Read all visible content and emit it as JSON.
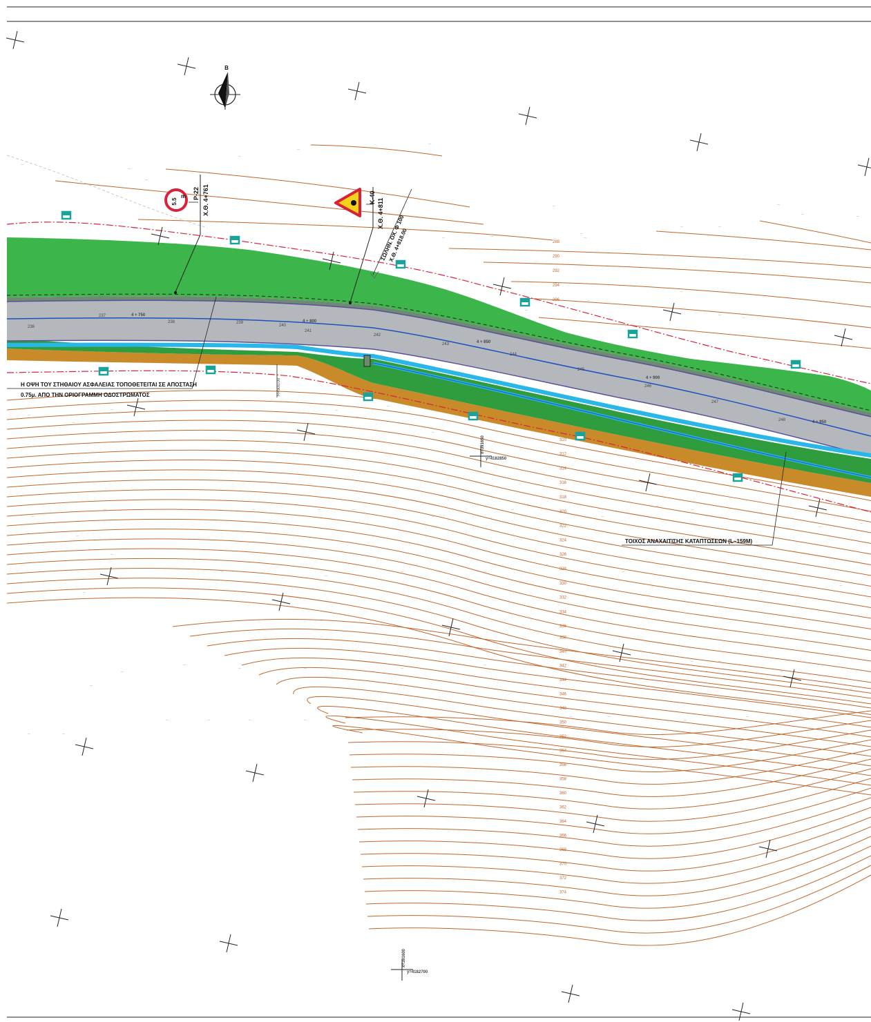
{
  "north_arrow": {
    "letter": "B"
  },
  "signs": [
    {
      "code": "P-22",
      "chainage": "X.Θ. 4+761",
      "value": "5.5",
      "unit": "m"
    },
    {
      "code": "K-40",
      "chainage": "X.Θ. 4+811"
    }
  ],
  "culvert": {
    "line1": "ΣΩΛΗΝ. ΟΧ. Φ 100",
    "line2": "X.Θ. 4+818.00"
  },
  "radius_label": "R=500.00",
  "chainages": [
    "4 + 750",
    "4 + 800",
    "4 + 850",
    "4 + 900",
    "4 + 950"
  ],
  "stations": [
    "236",
    "237",
    "238",
    "239",
    "240",
    "241",
    "242",
    "243",
    "244",
    "245",
    "246",
    "247",
    "248"
  ],
  "note": {
    "line1": "Η ΟΨΗ ΤΟΥ ΣΤΗΘΑΙΟΥ ΑΣΦΑΛΕΙΑΣ ΤΟΠΟΘΕΤΕΙΤΑΙ ΣΕ ΑΠΟΣΤΑΣΗ",
    "line2": "0.75μ. ΑΠΟ ΤΗΝ ΟΡΙΟΓΡΑΜΜΗ ΟΔΟΣΤΡΩΜΑΤΟΣ"
  },
  "wall_label": "ΤΟΙΧΟΣ ΑΝΑΧΑΙΤΙΣΗΣ ΚΑΤΑΠΤΩΣΕΩΝ (L~159M)",
  "coords": [
    {
      "x": "x=391650",
      "y": "y=4182850"
    },
    {
      "x": "x=391600",
      "y": "y=4182700"
    }
  ],
  "contour_labels": [
    "288",
    "290",
    "292",
    "294",
    "296",
    "308",
    "310",
    "312",
    "314",
    "316",
    "318",
    "320",
    "322",
    "324",
    "326",
    "328",
    "330",
    "332",
    "334",
    "336",
    "338",
    "340",
    "342",
    "344",
    "346",
    "348",
    "350",
    "352",
    "354",
    "356",
    "358",
    "360",
    "362",
    "364",
    "366",
    "368",
    "370",
    "372",
    "374"
  ],
  "colors": {
    "contour": "#c0662a",
    "grass": "#3cb54a",
    "road": "#b4b8bc",
    "water": "#29b6e8",
    "boundary": "#d9223a",
    "marker": "#1aa39a",
    "slope": "#c98a2a"
  }
}
